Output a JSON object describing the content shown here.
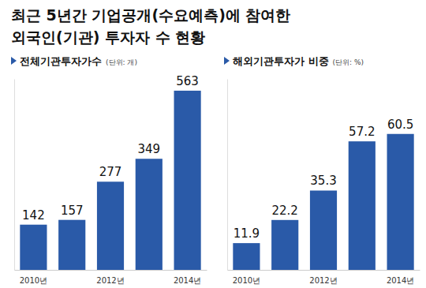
{
  "title": [
    "최근 5년간 기업공개(수요예측)에 참여한",
    "외국인(기관) 투자자 수 현황"
  ],
  "chart_data": [
    {
      "type": "bar",
      "title": "전체기관투자가수",
      "subtitle": "(단위: 개)",
      "categories": [
        "2010년",
        null,
        "2012년",
        null,
        "2014년"
      ],
      "values": [
        142,
        157,
        277,
        349,
        563
      ],
      "color": "#2a5aa8",
      "ylim": [
        0,
        600
      ],
      "data_labels": true,
      "tick_labels": "x"
    },
    {
      "type": "bar",
      "title": "해외기관투자가 비중",
      "subtitle": "(단위: %)",
      "categories": [
        "2010년",
        null,
        "2012년",
        null,
        "2014년"
      ],
      "values": [
        11.9,
        22.2,
        35.3,
        57.2,
        60.5
      ],
      "color": "#2a5aa8",
      "ylim": [
        0,
        85
      ],
      "data_labels": true,
      "tick_labels": "x"
    }
  ]
}
